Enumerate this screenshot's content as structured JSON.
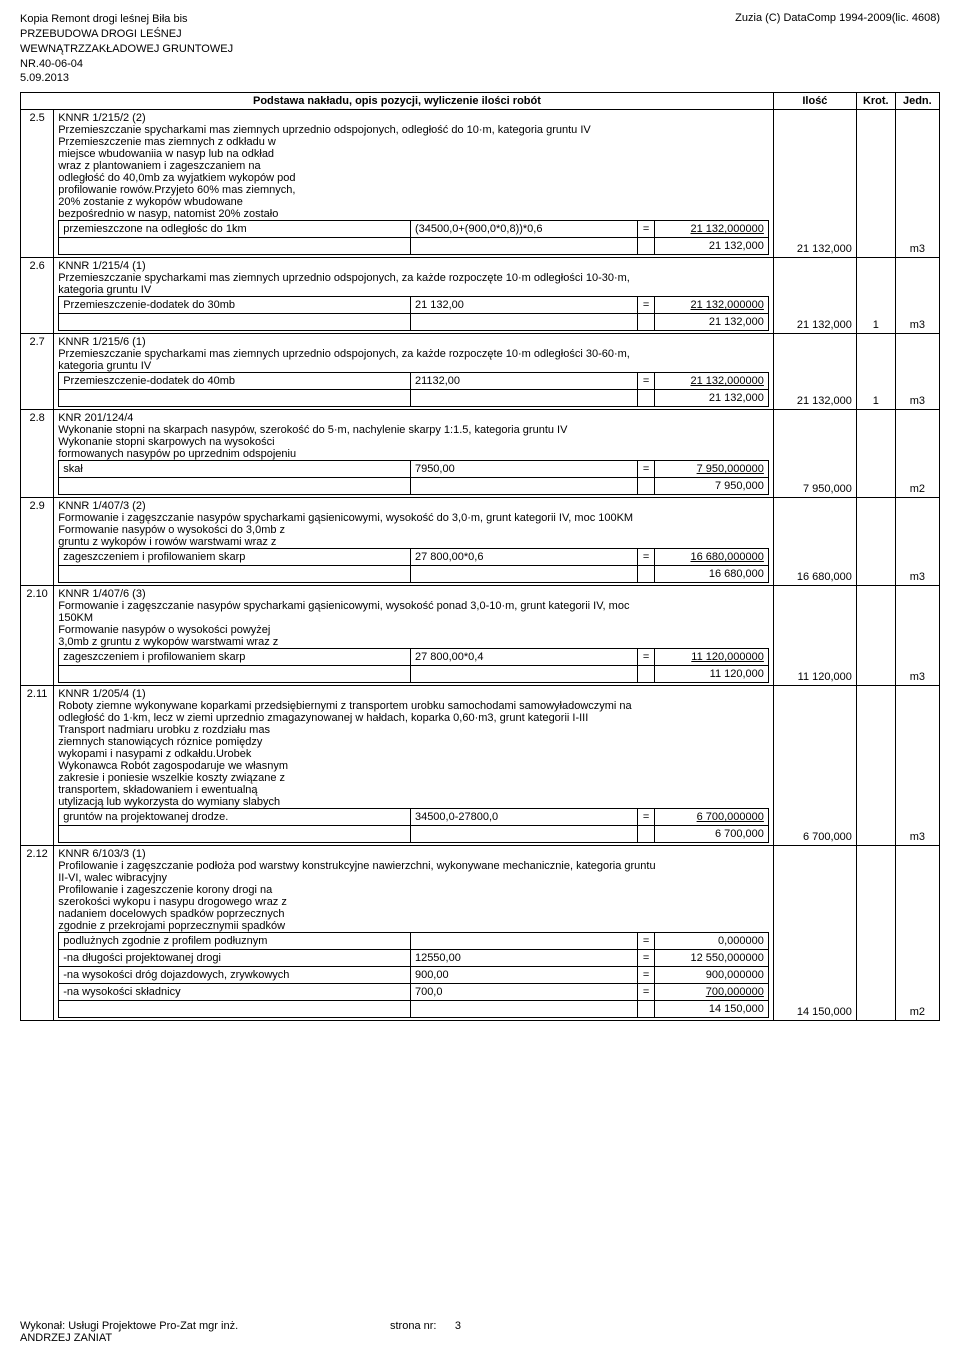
{
  "header": {
    "line1": "Kopia Remont drogi leśnej Biła bis",
    "line2": "PRZEBUDOWA DROGI LEŚNEJ",
    "line3": "WEWNĄTRZZAKŁADOWEJ GRUNTOWEJ",
    "line4": "NR.40-06-04",
    "line5": "5.09.2013",
    "right": "Zuzia (C) DataComp 1994-2009(lic. 4608)"
  },
  "columns": {
    "desc": "Podstawa nakładu, opis pozycji, wyliczenie ilości robót",
    "ilosc": "Ilość",
    "krot": "Krot.",
    "jedn": "Jedn."
  },
  "rows": [
    {
      "num": "2.5",
      "code": "KNNR 1/215/2 (2)",
      "desc_lines": [
        "Przemieszczanie spycharkami mas ziemnych uprzednio odspojonych, odległość do 10·m, kategoria gruntu IV",
        "Przemieszczenie mas ziemnych z odkładu w",
        "miejsce wbudowaniia w nasyp lub na odkład",
        "wraz z plantowaniem i zageszczaniem na",
        "odległość do 40,0mb za wyjatkiem wykopów pod",
        "profilowanie rowów.Przyjeto 60% mas ziemnych,",
        "20% zostanie z wykopów wbudowane",
        "bezpośrednio w nasyp, natomist 20% zostało"
      ],
      "calc_rows": [
        {
          "label": "przemieszczone na odległośc do 1km",
          "expr": "(34500,0+(900,0*0,8))*0,6",
          "eq": "=",
          "val": "21 132,000000",
          "underline": true
        }
      ],
      "subtotal": "21 132,000",
      "ilosc": "21 132,000",
      "krot": "",
      "jedn": "m3"
    },
    {
      "num": "2.6",
      "code": "KNNR 1/215/4 (1)",
      "desc_lines": [
        "Przemieszczanie spycharkami mas ziemnych uprzednio odspojonych, za każde rozpoczęte 10·m odległości 10-30·m,",
        "kategoria gruntu IV"
      ],
      "calc_rows": [
        {
          "label": "Przemieszczenie-dodatek do 30mb",
          "expr": "21 132,00",
          "eq": "=",
          "val": "21 132,000000",
          "underline": true
        }
      ],
      "subtotal": "21 132,000",
      "ilosc": "21 132,000",
      "krot": "1",
      "jedn": "m3"
    },
    {
      "num": "2.7",
      "code": "KNNR 1/215/6 (1)",
      "desc_lines": [
        "Przemieszczanie spycharkami mas ziemnych uprzednio odspojonych, za każde rozpoczęte 10·m odległości 30-60·m,",
        "kategoria gruntu IV"
      ],
      "calc_rows": [
        {
          "label": "Przemieszczenie-dodatek do 40mb",
          "expr": "21132,00",
          "eq": "=",
          "val": "21 132,000000",
          "underline": true
        }
      ],
      "subtotal": "21 132,000",
      "ilosc": "21 132,000",
      "krot": "1",
      "jedn": "m3"
    },
    {
      "num": "2.8",
      "code": "KNR 201/124/4",
      "desc_lines": [
        "Wykonanie stopni na skarpach nasypów, szerokość do 5·m, nachylenie skarpy 1:1.5, kategoria gruntu IV",
        "Wykonanie stopni skarpowych na wysokości",
        "formowanych nasypów po uprzednim odspojeniu"
      ],
      "calc_rows": [
        {
          "label": "skał",
          "expr": "7950,00",
          "eq": "=",
          "val": "7 950,000000",
          "underline": true
        }
      ],
      "subtotal": "7 950,000",
      "ilosc": "7 950,000",
      "krot": "",
      "jedn": "m2"
    },
    {
      "num": "2.9",
      "code": "KNNR 1/407/3 (2)",
      "desc_lines": [
        "Formowanie i zagęszczanie nasypów spycharkami gąsienicowymi, wysokość do 3,0·m, grunt kategorii IV, moc 100KM",
        "Formowanie nasypów o wysokości do 3,0mb  z",
        "gruntu z wykopów i rowów warstwami wraz z"
      ],
      "calc_rows": [
        {
          "label": "zageszczeniem i profilowaniem skarp",
          "expr": "27 800,00*0,6",
          "eq": "=",
          "val": "16 680,000000",
          "underline": true
        }
      ],
      "subtotal": "16 680,000",
      "ilosc": "16 680,000",
      "krot": "",
      "jedn": "m3"
    },
    {
      "num": "2.10",
      "code": "KNNR 1/407/6 (3)",
      "desc_lines": [
        "Formowanie i zagęszczanie nasypów spycharkami gąsienicowymi, wysokość ponad 3,0-10·m, grunt kategorii IV, moc",
        "150KM",
        "Formowanie nasypów o wysokości powyżej",
        "3,0mb  z gruntu z wykopów warstwami wraz z"
      ],
      "calc_rows": [
        {
          "label": "zageszczeniem i profilowaniem skarp",
          "expr": "27 800,00*0,4",
          "eq": "=",
          "val": "11 120,000000",
          "underline": true
        }
      ],
      "subtotal": "11 120,000",
      "ilosc": "11 120,000",
      "krot": "",
      "jedn": "m3"
    },
    {
      "num": "2.11",
      "code": "KNNR 1/205/4 (1)",
      "desc_lines": [
        "Roboty ziemne wykonywane koparkami przedsiębiernymi z transportem urobku samochodami samowyładowczymi na",
        "odległość do 1·km, lecz w ziemi uprzednio zmagazynowanej w hałdach, koparka 0,60·m3, grunt kategorii I-III",
        "Transport nadmiaru urobku z rozdziału mas",
        "ziemnych stanowiących róznice pomiędzy",
        "wykopami i nasypami z odkałdu.Urobek",
        "Wykonawca Robót zagospodaruje we własnym",
        "zakresie i poniesie wszelkie koszty związane z",
        "transportem, składowaniem i ewentualną",
        "utylizacją lub wykorzysta do wymiany slabych"
      ],
      "calc_rows": [
        {
          "label": "gruntów na projektowanej drodze.",
          "expr": "34500,0-27800,0",
          "eq": "=",
          "val": "6 700,000000",
          "underline": true
        }
      ],
      "subtotal": "6 700,000",
      "ilosc": "6 700,000",
      "krot": "",
      "jedn": "m3"
    },
    {
      "num": "2.12",
      "code": "KNNR 6/103/3 (1)",
      "desc_lines": [
        "Profilowanie i zagęszczanie podłoża pod warstwy konstrukcyjne nawierzchni, wykonywane mechanicznie, kategoria gruntu",
        "II-VI, walec wibracyjny",
        "Profilowanie i zageszczenie korony drogi na",
        "szerokości wykopu i nasypu drogowego wraz z",
        "nadaniem docelowych spadków poprzecznych",
        "zgodnie z przekrojami poprzecznymii spadków"
      ],
      "calc_rows": [
        {
          "label": "podlużnych zgodnie z profilem podłuznym",
          "expr": "",
          "eq": "=",
          "val": "0,000000",
          "underline": false
        },
        {
          "label": "-na długości projektowanej drogi",
          "expr": "12550,00",
          "eq": "=",
          "val": "12 550,000000",
          "underline": false
        },
        {
          "label": "-na wysokości dróg dojazdowych, zrywkowych",
          "expr": "900,00",
          "eq": "=",
          "val": "900,000000",
          "underline": false
        },
        {
          "label": "-na wysokości składnicy",
          "expr": "700,0",
          "eq": "=",
          "val": "700,000000",
          "underline": true
        }
      ],
      "subtotal": "14 150,000",
      "ilosc": "14 150,000",
      "krot": "",
      "jedn": "m2"
    }
  ],
  "footer": {
    "left1": "Wykonał: Usługi Projektowe Pro-Zat mgr inż.",
    "left2": "ANDRZEJ ZANIAT",
    "page_label": "strona nr:",
    "page_num": "3"
  }
}
